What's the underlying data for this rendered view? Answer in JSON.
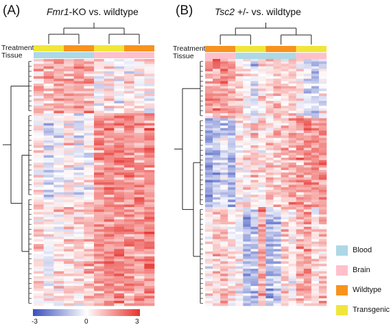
{
  "chart_data": [
    {
      "type": "heatmap",
      "panel": "(A)",
      "title_italic": "Fmr1",
      "title_rest": "-KO vs. wildtype",
      "annotation_rows": [
        "Treatment",
        "Tissue"
      ],
      "columns": 12,
      "rows": 100,
      "column_groups": [
        {
          "treatment": "Transgenic",
          "tissue": "Blood",
          "n": 3
        },
        {
          "treatment": "Wildtype",
          "tissue": "Blood",
          "n": 3
        },
        {
          "treatment": "Transgenic",
          "tissue": "Brain",
          "n": 3
        },
        {
          "treatment": "Wildtype",
          "tissue": "Brain",
          "n": 3
        }
      ],
      "row_clusters": [
        {
          "size": 22,
          "means": [
            0.9,
            0.8,
            1.4,
            1.1,
            1.5,
            1.3,
            0.2,
            0.3,
            -0.1,
            0.4,
            0.2,
            0.3
          ]
        },
        {
          "size": 34,
          "means": [
            0.1,
            -0.4,
            -0.2,
            0.2,
            -0.3,
            0.0,
            1.7,
            1.6,
            1.6,
            1.5,
            1.4,
            1.6
          ]
        },
        {
          "size": 44,
          "means": [
            0.5,
            0.0,
            0.3,
            0.7,
            0.6,
            0.8,
            1.5,
            1.7,
            1.6,
            1.5,
            1.4,
            1.7
          ]
        }
      ]
    },
    {
      "type": "heatmap",
      "panel": "(B)",
      "title_italic": "Tsc2",
      "title_rest": " +/- vs. wildtype",
      "annotation_rows": [
        "Treatment",
        "Tissue"
      ],
      "columns": 16,
      "rows": 100,
      "column_groups": [
        {
          "treatment": "Wildtype",
          "tissue": "Brain",
          "n": 4
        },
        {
          "treatment": "Transgenic",
          "tissue": "Blood",
          "n": 4
        },
        {
          "treatment": "Wildtype",
          "tissue": "Blood",
          "n": 4
        },
        {
          "treatment": "Transgenic",
          "tissue": "Brain",
          "n": 4
        }
      ],
      "row_clusters": [
        {
          "size": 24,
          "means": [
            1.3,
            1.4,
            1.5,
            1.2,
            0.6,
            0.1,
            -0.6,
            0.3,
            0.7,
            0.9,
            0.5,
            0.8,
            0.2,
            -0.3,
            -0.8,
            -0.2
          ]
        },
        {
          "size": 36,
          "means": [
            -1.3,
            -1.0,
            -0.6,
            -1.1,
            0.2,
            0.4,
            0.6,
            0.5,
            0.7,
            0.9,
            1.0,
            1.1,
            1.3,
            1.5,
            1.4,
            1.2
          ]
        },
        {
          "size": 40,
          "means": [
            0.4,
            0.6,
            0.8,
            0.5,
            0.1,
            -1.2,
            -0.9,
            1.3,
            -1.3,
            -0.8,
            0.6,
            0.2,
            1.0,
            1.4,
            0.3,
            0.9
          ]
        }
      ]
    }
  ],
  "legend": [
    {
      "label": "Blood",
      "color": "#ADD8E6"
    },
    {
      "label": "Brain",
      "color": "#FFC0CB"
    },
    {
      "label": "Wildtype",
      "color": "#F7931E"
    },
    {
      "label": "Transgenic",
      "color": "#F0E63A"
    }
  ],
  "color_scale": {
    "min": -3,
    "mid": 0,
    "max": 3,
    "low_color": "#3a4fbf",
    "mid_color": "#ffffff",
    "high_color": "#e8322d",
    "tick_labels": [
      "-3",
      "0",
      "3"
    ]
  },
  "text": {
    "panel_a_letter": "(A)",
    "panel_b_letter": "(B)",
    "panel_a_italic": "Fmr1",
    "panel_a_rest": "-KO vs. wildtype",
    "panel_b_italic": "Tsc2",
    "panel_b_rest": " +/- vs. wildtype",
    "treatment_label": "Treatment",
    "tissue_label": "Tissue"
  }
}
